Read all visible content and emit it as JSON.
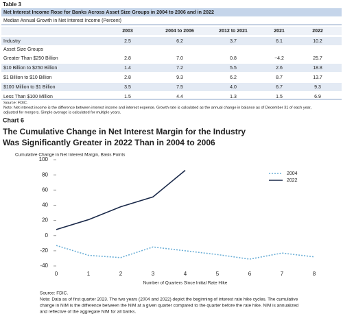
{
  "table": {
    "label": "Table 3",
    "title": "Net Interest Income Rose for Banks Across Asset Size Groups in 2004 to 2006 and in 2022",
    "subtitle": "Median Annual Growth in Net Interest Income (Percent)",
    "columns": [
      "2003",
      "2004 to 2006",
      "2012 to 2021",
      "2021",
      "2022"
    ],
    "industry": {
      "label": "Industry",
      "cells": [
        "2.5",
        "6.2",
        "3.7",
        "6.1",
        "10.2"
      ]
    },
    "group_heading": "Asset Size Groups",
    "rows": [
      {
        "label": "Greater Than $250 Billion",
        "cells": [
          "2.8",
          "7.0",
          "0.8",
          "−4.2",
          "25.7"
        ]
      },
      {
        "label": "$10 Billion to $250 Billion",
        "cells": [
          "1.4",
          "7.2",
          "5.5",
          "2.6",
          "18.8"
        ]
      },
      {
        "label": "$1 Billion to $10 Billion",
        "cells": [
          "2.8",
          "9.3",
          "6.2",
          "8.7",
          "13.7"
        ]
      },
      {
        "label": "$100 Million to $1 Billion",
        "cells": [
          "3.5",
          "7.5",
          "4.0",
          "6.7",
          "9.3"
        ]
      },
      {
        "label": "Less Than $100 Million",
        "cells": [
          "1.5",
          "4.4",
          "1.3",
          "1.5",
          "6.9"
        ]
      }
    ],
    "source": "Source: FDIC.",
    "note": [
      "Note: Net interest income is the difference between interest income and interest expense. Growth rate is calculated as the annual change in balance as of December 31 of each year,",
      "adjusted for mergers. Simple average is calculated for multiple years."
    ]
  },
  "chart_data": {
    "type": "line",
    "label": "Chart 6",
    "title": [
      "The Cumulative Change in Net Interest Margin for the Industry",
      "Was Significantly Greater in 2022 Than in 2004 to 2006"
    ],
    "ylabel": "Cumulative Change in Net Interest Margin, Basis Points",
    "xlabel": "Number of Quarters Since Initial Rate Hike",
    "x": [
      0,
      1,
      2,
      3,
      4,
      5,
      6,
      7,
      8
    ],
    "series": [
      {
        "name": "2004",
        "color": "#6aaed6",
        "dash": true,
        "values": [
          -13,
          -26,
          -29,
          -15,
          -20,
          -25,
          -31,
          -23,
          -28
        ]
      },
      {
        "name": "2022",
        "color": "#1b2a4a",
        "dash": false,
        "values": [
          8,
          21,
          38,
          51,
          86,
          null,
          null,
          null,
          null
        ]
      }
    ],
    "xlim": [
      0,
      8
    ],
    "xticks": [
      0,
      1,
      2,
      3,
      4,
      5,
      6,
      7,
      8
    ],
    "ylim": [
      -40,
      100
    ],
    "yticks": [
      -40,
      -20,
      0,
      20,
      40,
      60,
      80,
      100
    ],
    "grid": false,
    "legend": "upper right",
    "source": "Source: FDIC.",
    "note": [
      "Note: Data as of first quarter 2023. The two years (2004 and 2022) depict the beginning of interest rate hike cycles. The cumulative",
      "change in NIM is the difference between the NIM at a given quarter compared to the quarter before the rate hike. NIM is annualized",
      "and reflective of the aggregate NIM for all banks."
    ]
  }
}
